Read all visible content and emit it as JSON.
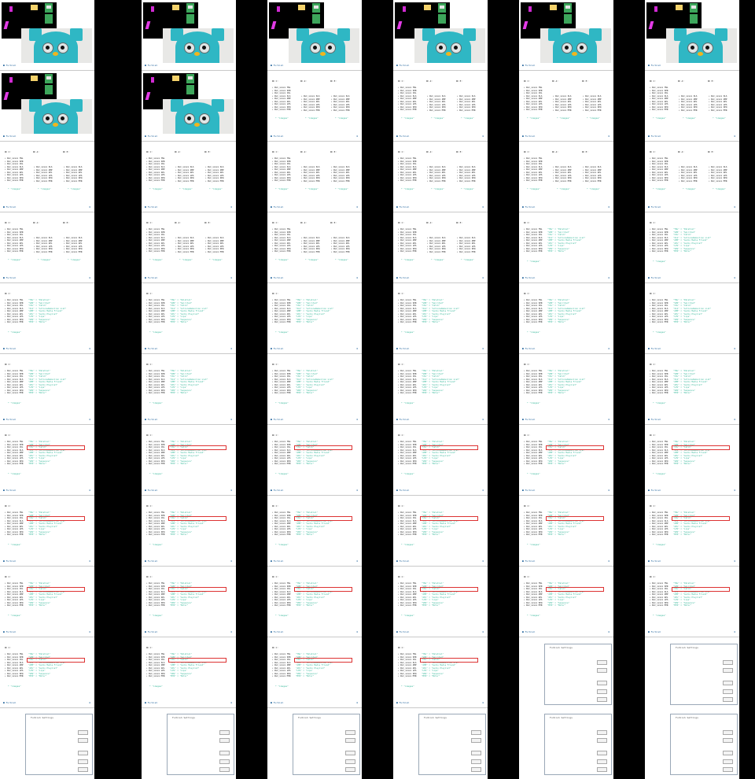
{
  "headings": {
    "c": "RC C:",
    "a": "RC A:",
    "e": "RC E:"
  },
  "list_items": [
    "• DLC_xxxxx YNL",
    "• DLC_xxxxx SPR",
    "• DLC_xxxxx CKL",
    "• DLC_xxxxx XLS",
    "• DLC_xxxxx AMP",
    "• DLC_xxxxx APL",
    "• DLC_xxxxx LPS",
    "• DLC_xxxxx SEQ",
    "• DLC_xxxxx MTR"
  ],
  "mapping": [
    "\"YNL\" = \"Palatial\"",
    "\"SPR\" = \"Spirited\"",
    "\"CKL\" = \"Catch\"",
    "\"XLS\" = \"ActionsDemuxlion List\"",
    "\"AMP\" = \"Audio Media Friend\"",
    "\"APL\" = \"Audio Playlist\"",
    "\"LPS\" = \"Lips\"",
    "\"SEQ\" = \"Sequence\"",
    "\"MTR\" = \"Motor\""
  ],
  "images_link": "* \"images\"",
  "logo_text": "Furbish",
  "settings_icon": "gear-icon",
  "dialog": {
    "title": "Furbish Settings"
  },
  "colors": {
    "accent": "#38b89b",
    "highlight": "#c62828",
    "link": "#2b6aa0"
  }
}
